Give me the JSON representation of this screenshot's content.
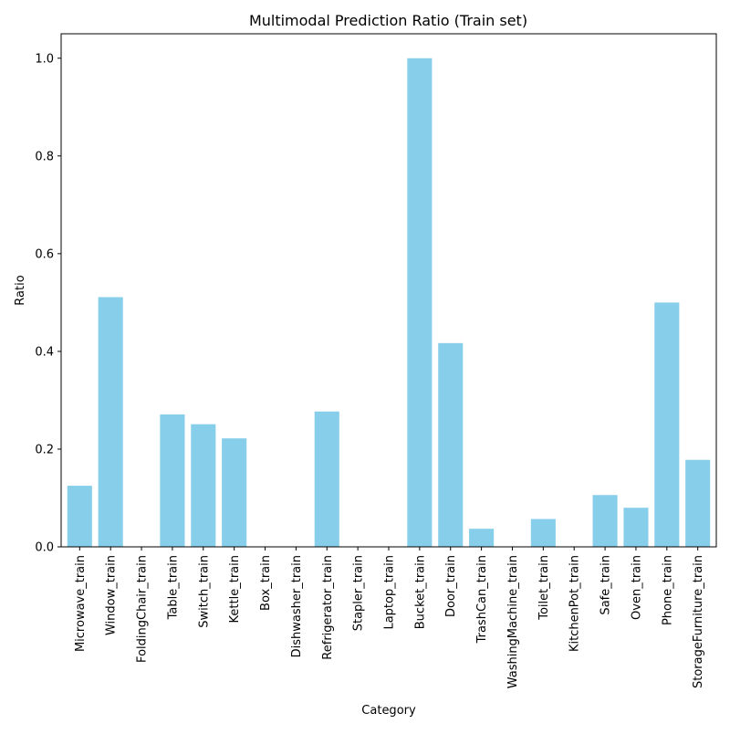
{
  "chart_data": {
    "type": "bar",
    "title": "Multimodal Prediction Ratio (Train set)",
    "xlabel": "Category",
    "ylabel": "Ratio",
    "ylim": [
      0,
      1.05
    ],
    "yticks": [
      "0.0",
      "0.2",
      "0.4",
      "0.6",
      "0.8",
      "1.0"
    ],
    "grid": false,
    "bar_color": "#87CEEB",
    "categories": [
      "Microwave_train",
      "Window_train",
      "FoldingChair_train",
      "Table_train",
      "Switch_train",
      "Kettle_train",
      "Box_train",
      "Dishwasher_train",
      "Refrigerator_train",
      "Stapler_train",
      "Laptop_train",
      "Bucket_train",
      "Door_train",
      "TrashCan_train",
      "WashingMachine_train",
      "Toilet_train",
      "KitchenPot_train",
      "Safe_train",
      "Oven_train",
      "Phone_train",
      "StorageFurniture_train"
    ],
    "values": [
      0.125,
      0.511,
      0.0,
      0.271,
      0.251,
      0.222,
      0.0,
      0.0,
      0.277,
      0.0,
      0.0,
      1.0,
      0.417,
      0.037,
      0.0,
      0.057,
      0.0,
      0.106,
      0.08,
      0.5,
      0.178
    ]
  }
}
